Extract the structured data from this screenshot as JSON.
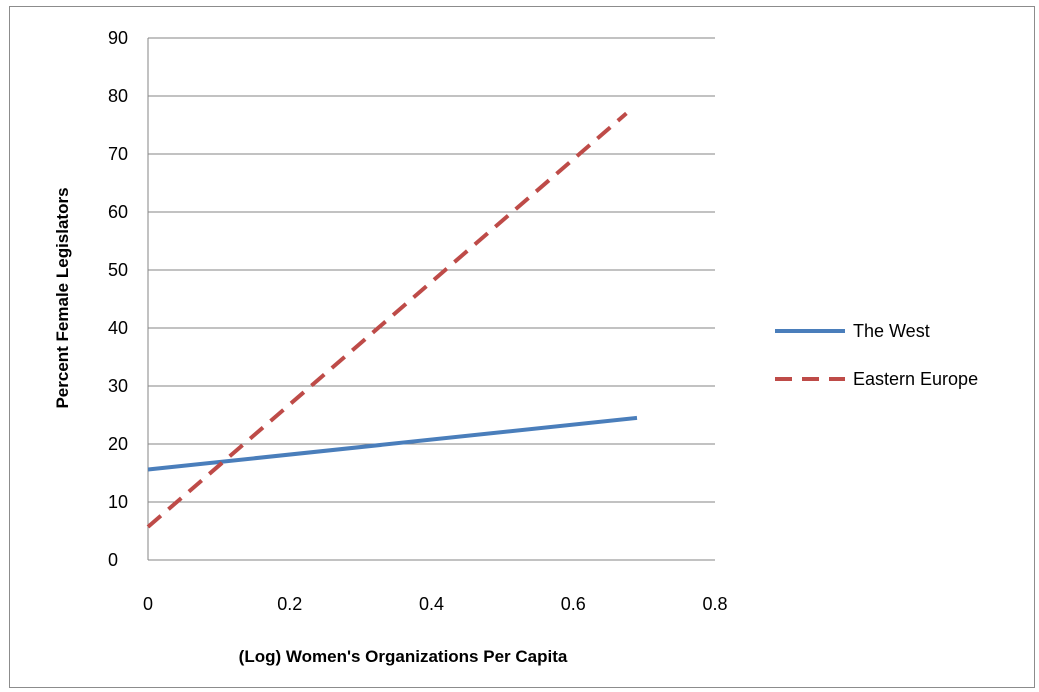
{
  "chart_data": {
    "type": "line",
    "xlabel": "(Log) Women's Organizations Per Capita",
    "ylabel": "Percent Female Legislators",
    "xlim": [
      0,
      0.8
    ],
    "ylim": [
      0,
      90
    ],
    "x_ticks": [
      "0",
      "0.2",
      "0.4",
      "0.6",
      "0.8"
    ],
    "y_ticks": [
      "0",
      "10",
      "20",
      "30",
      "40",
      "50",
      "60",
      "70",
      "80",
      "90"
    ],
    "grid": "horizontal",
    "legend_position": "right",
    "series": [
      {
        "name": "The West",
        "style": "solid",
        "color": "#4a7ebb",
        "x": [
          0,
          0.69
        ],
        "y": [
          15.6,
          24.5
        ]
      },
      {
        "name": "Eastern Europe",
        "style": "dashed",
        "color": "#be4b48",
        "x": [
          0,
          0.675
        ],
        "y": [
          5.7,
          77.0
        ]
      }
    ]
  }
}
